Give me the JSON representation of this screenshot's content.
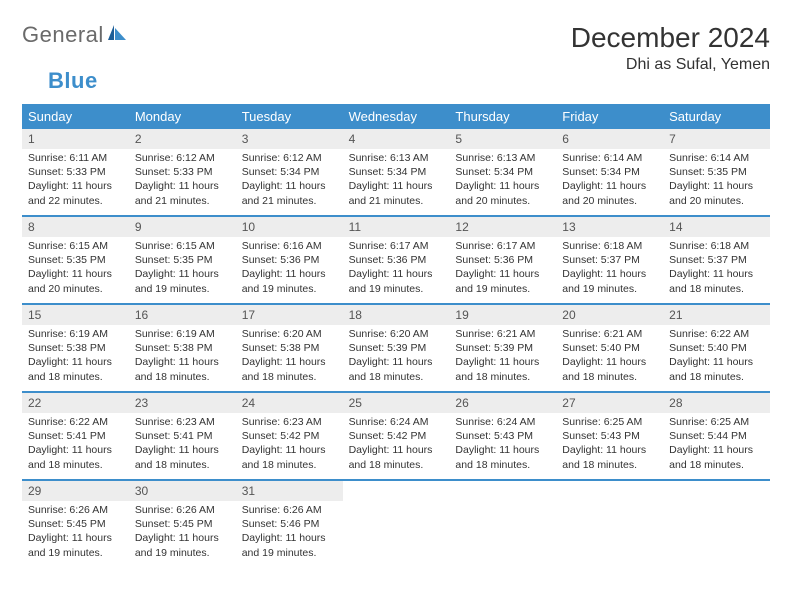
{
  "logo": {
    "text1": "General",
    "text2": "Blue"
  },
  "title": "December 2024",
  "location": "Dhi as Sufal, Yemen",
  "colors": {
    "header_bg": "#3d8ecb",
    "header_text": "#ffffff",
    "daynum_bg": "#ededed",
    "week_border": "#3d8ecb",
    "logo_gray": "#6a6a6a",
    "logo_blue": "#3d8ecb"
  },
  "day_names": [
    "Sunday",
    "Monday",
    "Tuesday",
    "Wednesday",
    "Thursday",
    "Friday",
    "Saturday"
  ],
  "weeks": [
    [
      {
        "n": "1",
        "sr": "6:11 AM",
        "ss": "5:33 PM",
        "dl": "11 hours and 22 minutes."
      },
      {
        "n": "2",
        "sr": "6:12 AM",
        "ss": "5:33 PM",
        "dl": "11 hours and 21 minutes."
      },
      {
        "n": "3",
        "sr": "6:12 AM",
        "ss": "5:34 PM",
        "dl": "11 hours and 21 minutes."
      },
      {
        "n": "4",
        "sr": "6:13 AM",
        "ss": "5:34 PM",
        "dl": "11 hours and 21 minutes."
      },
      {
        "n": "5",
        "sr": "6:13 AM",
        "ss": "5:34 PM",
        "dl": "11 hours and 20 minutes."
      },
      {
        "n": "6",
        "sr": "6:14 AM",
        "ss": "5:34 PM",
        "dl": "11 hours and 20 minutes."
      },
      {
        "n": "7",
        "sr": "6:14 AM",
        "ss": "5:35 PM",
        "dl": "11 hours and 20 minutes."
      }
    ],
    [
      {
        "n": "8",
        "sr": "6:15 AM",
        "ss": "5:35 PM",
        "dl": "11 hours and 20 minutes."
      },
      {
        "n": "9",
        "sr": "6:15 AM",
        "ss": "5:35 PM",
        "dl": "11 hours and 19 minutes."
      },
      {
        "n": "10",
        "sr": "6:16 AM",
        "ss": "5:36 PM",
        "dl": "11 hours and 19 minutes."
      },
      {
        "n": "11",
        "sr": "6:17 AM",
        "ss": "5:36 PM",
        "dl": "11 hours and 19 minutes."
      },
      {
        "n": "12",
        "sr": "6:17 AM",
        "ss": "5:36 PM",
        "dl": "11 hours and 19 minutes."
      },
      {
        "n": "13",
        "sr": "6:18 AM",
        "ss": "5:37 PM",
        "dl": "11 hours and 19 minutes."
      },
      {
        "n": "14",
        "sr": "6:18 AM",
        "ss": "5:37 PM",
        "dl": "11 hours and 18 minutes."
      }
    ],
    [
      {
        "n": "15",
        "sr": "6:19 AM",
        "ss": "5:38 PM",
        "dl": "11 hours and 18 minutes."
      },
      {
        "n": "16",
        "sr": "6:19 AM",
        "ss": "5:38 PM",
        "dl": "11 hours and 18 minutes."
      },
      {
        "n": "17",
        "sr": "6:20 AM",
        "ss": "5:38 PM",
        "dl": "11 hours and 18 minutes."
      },
      {
        "n": "18",
        "sr": "6:20 AM",
        "ss": "5:39 PM",
        "dl": "11 hours and 18 minutes."
      },
      {
        "n": "19",
        "sr": "6:21 AM",
        "ss": "5:39 PM",
        "dl": "11 hours and 18 minutes."
      },
      {
        "n": "20",
        "sr": "6:21 AM",
        "ss": "5:40 PM",
        "dl": "11 hours and 18 minutes."
      },
      {
        "n": "21",
        "sr": "6:22 AM",
        "ss": "5:40 PM",
        "dl": "11 hours and 18 minutes."
      }
    ],
    [
      {
        "n": "22",
        "sr": "6:22 AM",
        "ss": "5:41 PM",
        "dl": "11 hours and 18 minutes."
      },
      {
        "n": "23",
        "sr": "6:23 AM",
        "ss": "5:41 PM",
        "dl": "11 hours and 18 minutes."
      },
      {
        "n": "24",
        "sr": "6:23 AM",
        "ss": "5:42 PM",
        "dl": "11 hours and 18 minutes."
      },
      {
        "n": "25",
        "sr": "6:24 AM",
        "ss": "5:42 PM",
        "dl": "11 hours and 18 minutes."
      },
      {
        "n": "26",
        "sr": "6:24 AM",
        "ss": "5:43 PM",
        "dl": "11 hours and 18 minutes."
      },
      {
        "n": "27",
        "sr": "6:25 AM",
        "ss": "5:43 PM",
        "dl": "11 hours and 18 minutes."
      },
      {
        "n": "28",
        "sr": "6:25 AM",
        "ss": "5:44 PM",
        "dl": "11 hours and 18 minutes."
      }
    ],
    [
      {
        "n": "29",
        "sr": "6:26 AM",
        "ss": "5:45 PM",
        "dl": "11 hours and 19 minutes."
      },
      {
        "n": "30",
        "sr": "6:26 AM",
        "ss": "5:45 PM",
        "dl": "11 hours and 19 minutes."
      },
      {
        "n": "31",
        "sr": "6:26 AM",
        "ss": "5:46 PM",
        "dl": "11 hours and 19 minutes."
      },
      null,
      null,
      null,
      null
    ]
  ],
  "labels": {
    "sunrise": "Sunrise: ",
    "sunset": "Sunset: ",
    "daylight": "Daylight: "
  }
}
